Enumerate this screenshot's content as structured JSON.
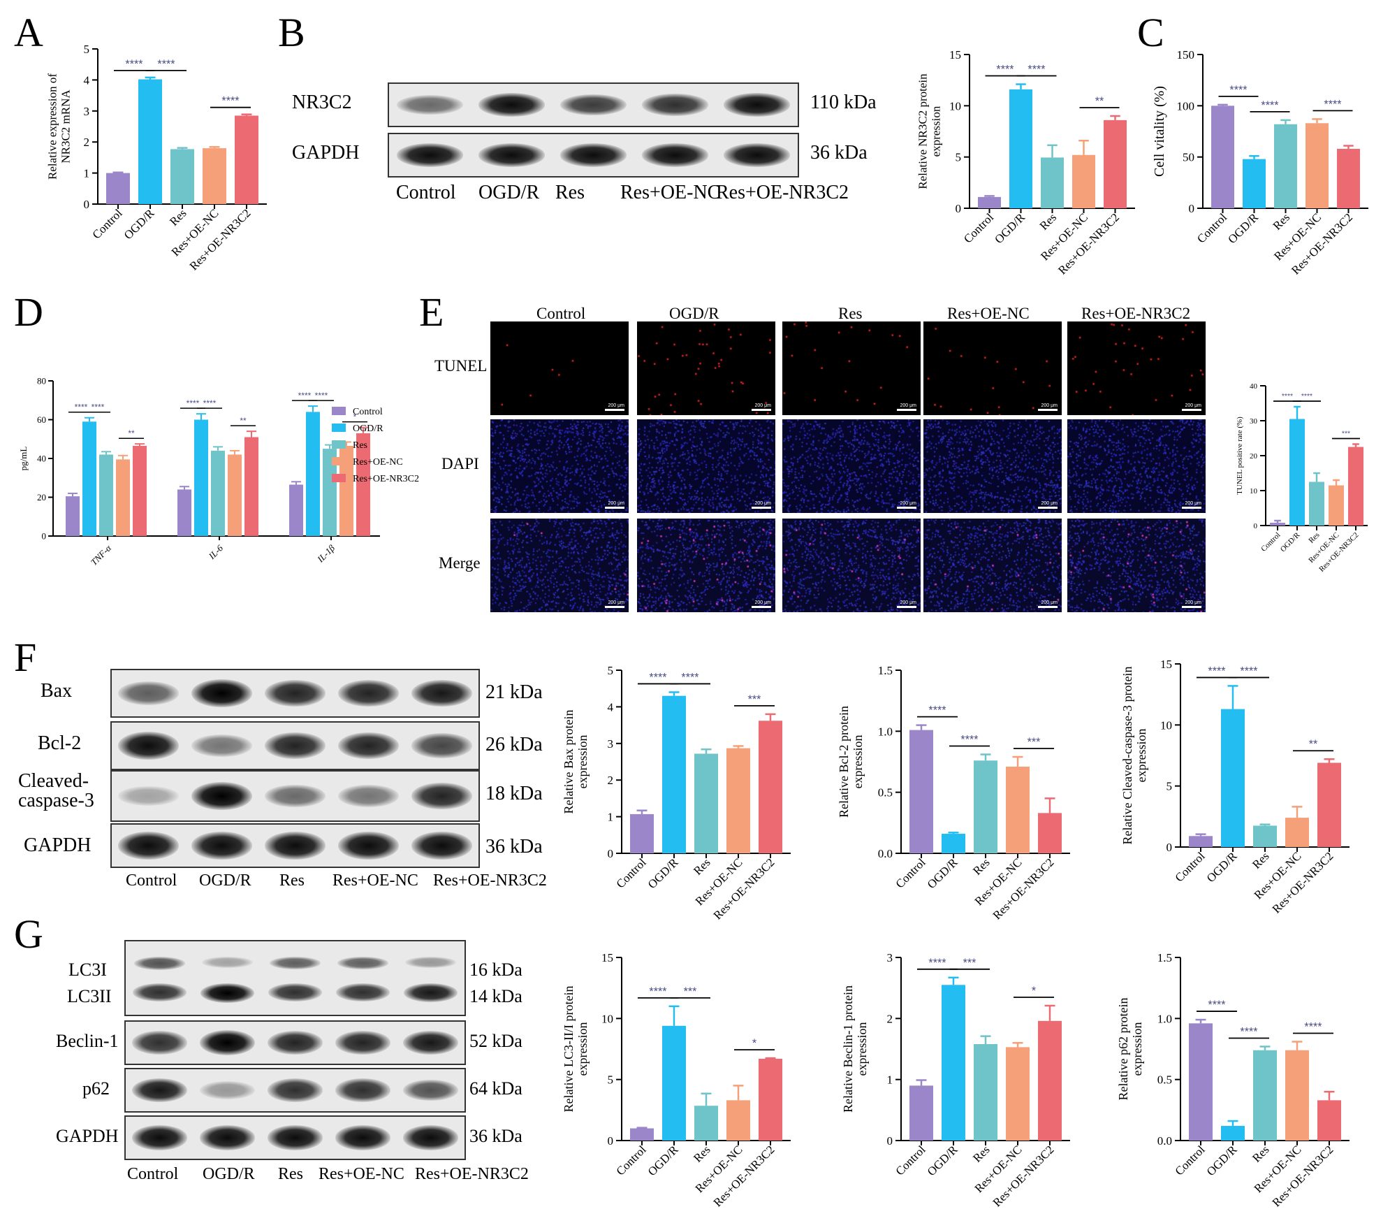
{
  "panel_letters": {
    "A": "A",
    "B": "B",
    "C": "C",
    "D": "D",
    "E": "E",
    "F": "F",
    "G": "G"
  },
  "groups": [
    "Control",
    "OGD/R",
    "Res",
    "Res+OE-NC",
    "Res+OE-NR3C2"
  ],
  "colors": {
    "Control": "#9b86c9",
    "OGD/R": "#24bdf2",
    "Res": "#6ec4c8",
    "Res+OE-NC": "#f5a078",
    "Res+OE-NR3C2": "#ec6a72",
    "sig": "#4a4f86"
  },
  "blotB": {
    "bands": [
      {
        "name": "NR3C2",
        "kda": "110 kDa"
      },
      {
        "name": "GAPDH",
        "kda": "36 kDa"
      }
    ]
  },
  "blotF": {
    "bands": [
      {
        "name": "Bax",
        "kda": "21 kDa"
      },
      {
        "name": "Bcl-2",
        "kda": "26 kDa"
      },
      {
        "name": "Cleaved-\ncaspase-3",
        "kda": "18 kDa"
      },
      {
        "name": "GAPDH",
        "kda": "36 kDa"
      }
    ]
  },
  "blotG": {
    "bands": [
      {
        "name": "LC3I",
        "kda": "16 kDa"
      },
      {
        "name": "LC3II",
        "kda": "14 kDa"
      },
      {
        "name": "Beclin-1",
        "kda": "52 kDa"
      },
      {
        "name": "p62",
        "kda": "64 kDa"
      },
      {
        "name": "GAPDH",
        "kda": "36 kDa"
      }
    ]
  },
  "panelE": {
    "rows": [
      "TUNEL",
      "DAPI",
      "Merge"
    ],
    "cols": [
      "Control",
      "OGD/R",
      "Res",
      "Res+OE-NC",
      "Res+OE-NR3C2"
    ],
    "scale": "200 μm"
  },
  "chart_data": [
    {
      "id": "A",
      "type": "bar",
      "ylabel": "Relative expression of\nNR3C2 mRNA",
      "ylim": [
        0,
        5
      ],
      "yticks": [
        0,
        1,
        2,
        3,
        4,
        5
      ],
      "values": [
        1.0,
        4.02,
        1.77,
        1.8,
        2.85
      ],
      "errors": [
        0.02,
        0.06,
        0.04,
        0.04,
        0.04
      ],
      "sig": [
        {
          "a": 0,
          "b": 1,
          "label": "****"
        },
        {
          "a": 1,
          "b": 2,
          "label": "****"
        },
        {
          "a": 3,
          "b": 4,
          "label": "****"
        }
      ]
    },
    {
      "id": "B",
      "type": "bar",
      "ylabel": "Relative NR3C2 protein\nexpression",
      "ylim": [
        0,
        15
      ],
      "yticks": [
        0,
        5,
        10,
        15
      ],
      "values": [
        1.1,
        11.6,
        4.95,
        5.2,
        8.6
      ],
      "errors": [
        0.1,
        0.5,
        1.2,
        1.4,
        0.4
      ],
      "sig": [
        {
          "a": 0,
          "b": 1,
          "label": "****"
        },
        {
          "a": 1,
          "b": 2,
          "label": "****"
        },
        {
          "a": 3,
          "b": 4,
          "label": "**"
        }
      ]
    },
    {
      "id": "C",
      "type": "bar",
      "ylabel": "Cell vitality (%)",
      "ylim": [
        0,
        150
      ],
      "yticks": [
        0,
        50,
        100,
        150
      ],
      "values": [
        100,
        48,
        82,
        83,
        58
      ],
      "errors": [
        1,
        3,
        4,
        4,
        3
      ],
      "sig": [
        {
          "a": 0,
          "b": 1,
          "label": "****"
        },
        {
          "a": 1,
          "b": 2,
          "label": "****"
        },
        {
          "a": 3,
          "b": 4,
          "label": "****"
        }
      ]
    },
    {
      "id": "D",
      "type": "bar",
      "ylabel": "pg/mL",
      "ylim": [
        0,
        80
      ],
      "yticks": [
        0,
        20,
        40,
        60,
        80
      ],
      "categories": [
        "TNF-α",
        "IL-6",
        "IL-1β"
      ],
      "series": [
        {
          "name": "Control",
          "values": [
            20.5,
            24,
            26.5
          ],
          "errors": [
            1.5,
            1.5,
            1.5
          ]
        },
        {
          "name": "OGD/R",
          "values": [
            59,
            60,
            64
          ],
          "errors": [
            2,
            3,
            3
          ]
        },
        {
          "name": "Res",
          "values": [
            42,
            44,
            45
          ],
          "errors": [
            1.5,
            2,
            2
          ]
        },
        {
          "name": "Res+OE-NC",
          "values": [
            39.5,
            42,
            46.5
          ],
          "errors": [
            2,
            2,
            2
          ]
        },
        {
          "name": "Res+OE-NR3C2",
          "values": [
            46.5,
            51,
            53
          ],
          "errors": [
            1,
            3,
            3
          ]
        }
      ],
      "sig": [
        {
          "c": 0,
          "a": 0,
          "b": 1,
          "label": "****"
        },
        {
          "c": 0,
          "a": 1,
          "b": 2,
          "label": "****"
        },
        {
          "c": 0,
          "a": 3,
          "b": 4,
          "label": "**"
        },
        {
          "c": 1,
          "a": 0,
          "b": 1,
          "label": "****"
        },
        {
          "c": 1,
          "a": 1,
          "b": 2,
          "label": "****"
        },
        {
          "c": 1,
          "a": 3,
          "b": 4,
          "label": "**"
        },
        {
          "c": 2,
          "a": 0,
          "b": 1,
          "label": "****"
        },
        {
          "c": 2,
          "a": 1,
          "b": 2,
          "label": "****"
        },
        {
          "c": 2,
          "a": 3,
          "b": 4,
          "label": "*"
        }
      ],
      "legend": "right"
    },
    {
      "id": "E",
      "type": "bar",
      "ylabel": "TUNEL positive rate (%)",
      "ylim": [
        0,
        40
      ],
      "yticks": [
        0,
        10,
        20,
        30,
        40
      ],
      "values": [
        0.8,
        30.5,
        12.5,
        11.5,
        22.5
      ],
      "errors": [
        0.6,
        3.5,
        2.5,
        1.5,
        0.8
      ],
      "sig": [
        {
          "a": 0,
          "b": 1,
          "label": "****"
        },
        {
          "a": 1,
          "b": 2,
          "label": "****"
        },
        {
          "a": 3,
          "b": 4,
          "label": "***"
        }
      ]
    },
    {
      "id": "F1",
      "type": "bar",
      "ylabel": "Relative Bax protein\nexpression",
      "ylim": [
        0,
        5
      ],
      "yticks": [
        0,
        1,
        2,
        3,
        4,
        5
      ],
      "values": [
        1.07,
        4.3,
        2.72,
        2.87,
        3.62
      ],
      "errors": [
        0.1,
        0.1,
        0.12,
        0.06,
        0.18
      ],
      "sig": [
        {
          "a": 0,
          "b": 1,
          "label": "****"
        },
        {
          "a": 1,
          "b": 2,
          "label": "****"
        },
        {
          "a": 3,
          "b": 4,
          "label": "***"
        }
      ]
    },
    {
      "id": "F2",
      "type": "bar",
      "ylabel": "Relative Bcl-2 protein\nexpression",
      "ylim": [
        0,
        1.5
      ],
      "yticks": [
        0.0,
        0.5,
        1.0,
        1.5
      ],
      "values": [
        1.01,
        0.16,
        0.76,
        0.71,
        0.33
      ],
      "errors": [
        0.04,
        0.01,
        0.05,
        0.08,
        0.12
      ],
      "sig": [
        {
          "a": 0,
          "b": 1,
          "label": "****"
        },
        {
          "a": 1,
          "b": 2,
          "label": "****"
        },
        {
          "a": 3,
          "b": 4,
          "label": "***"
        }
      ]
    },
    {
      "id": "F3",
      "type": "bar",
      "ylabel": "Relative Cleaved-caspase-3 protein\nexpression",
      "ylim": [
        0,
        15
      ],
      "yticks": [
        0,
        5,
        10,
        15
      ],
      "values": [
        0.9,
        11.3,
        1.75,
        2.4,
        6.9
      ],
      "errors": [
        0.15,
        1.9,
        0.1,
        0.9,
        0.3
      ],
      "sig": [
        {
          "a": 0,
          "b": 1,
          "label": "****"
        },
        {
          "a": 1,
          "b": 2,
          "label": "****"
        },
        {
          "a": 3,
          "b": 4,
          "label": "**"
        }
      ]
    },
    {
      "id": "G1",
      "type": "bar",
      "ylabel": "Relative LC3-II/I protein\nexpression",
      "ylim": [
        0,
        15
      ],
      "yticks": [
        0,
        5,
        10,
        15
      ],
      "values": [
        1.0,
        9.4,
        2.85,
        3.3,
        6.7
      ],
      "errors": [
        0.05,
        1.6,
        1.0,
        1.2,
        0.05
      ],
      "sig": [
        {
          "a": 0,
          "b": 1,
          "label": "****"
        },
        {
          "a": 1,
          "b": 2,
          "label": "***"
        },
        {
          "a": 3,
          "b": 4,
          "label": "*"
        }
      ]
    },
    {
      "id": "G2",
      "type": "bar",
      "ylabel": "Relative Beclin-1 protein\nexpression",
      "ylim": [
        0,
        3
      ],
      "yticks": [
        0,
        1,
        2,
        3
      ],
      "values": [
        0.9,
        2.55,
        1.58,
        1.53,
        1.96
      ],
      "errors": [
        0.09,
        0.12,
        0.13,
        0.07,
        0.25
      ],
      "sig": [
        {
          "a": 0,
          "b": 1,
          "label": "****"
        },
        {
          "a": 1,
          "b": 2,
          "label": "***"
        },
        {
          "a": 3,
          "b": 4,
          "label": "*"
        }
      ]
    },
    {
      "id": "G3",
      "type": "bar",
      "ylabel": "Relative p62 protein\nexpression",
      "ylim": [
        0,
        1.5
      ],
      "yticks": [
        0.0,
        0.5,
        1.0,
        1.5
      ],
      "values": [
        0.96,
        0.12,
        0.74,
        0.74,
        0.33
      ],
      "errors": [
        0.03,
        0.04,
        0.03,
        0.07,
        0.07
      ],
      "sig": [
        {
          "a": 0,
          "b": 1,
          "label": "****"
        },
        {
          "a": 1,
          "b": 2,
          "label": "****"
        },
        {
          "a": 3,
          "b": 4,
          "label": "****"
        }
      ]
    }
  ]
}
